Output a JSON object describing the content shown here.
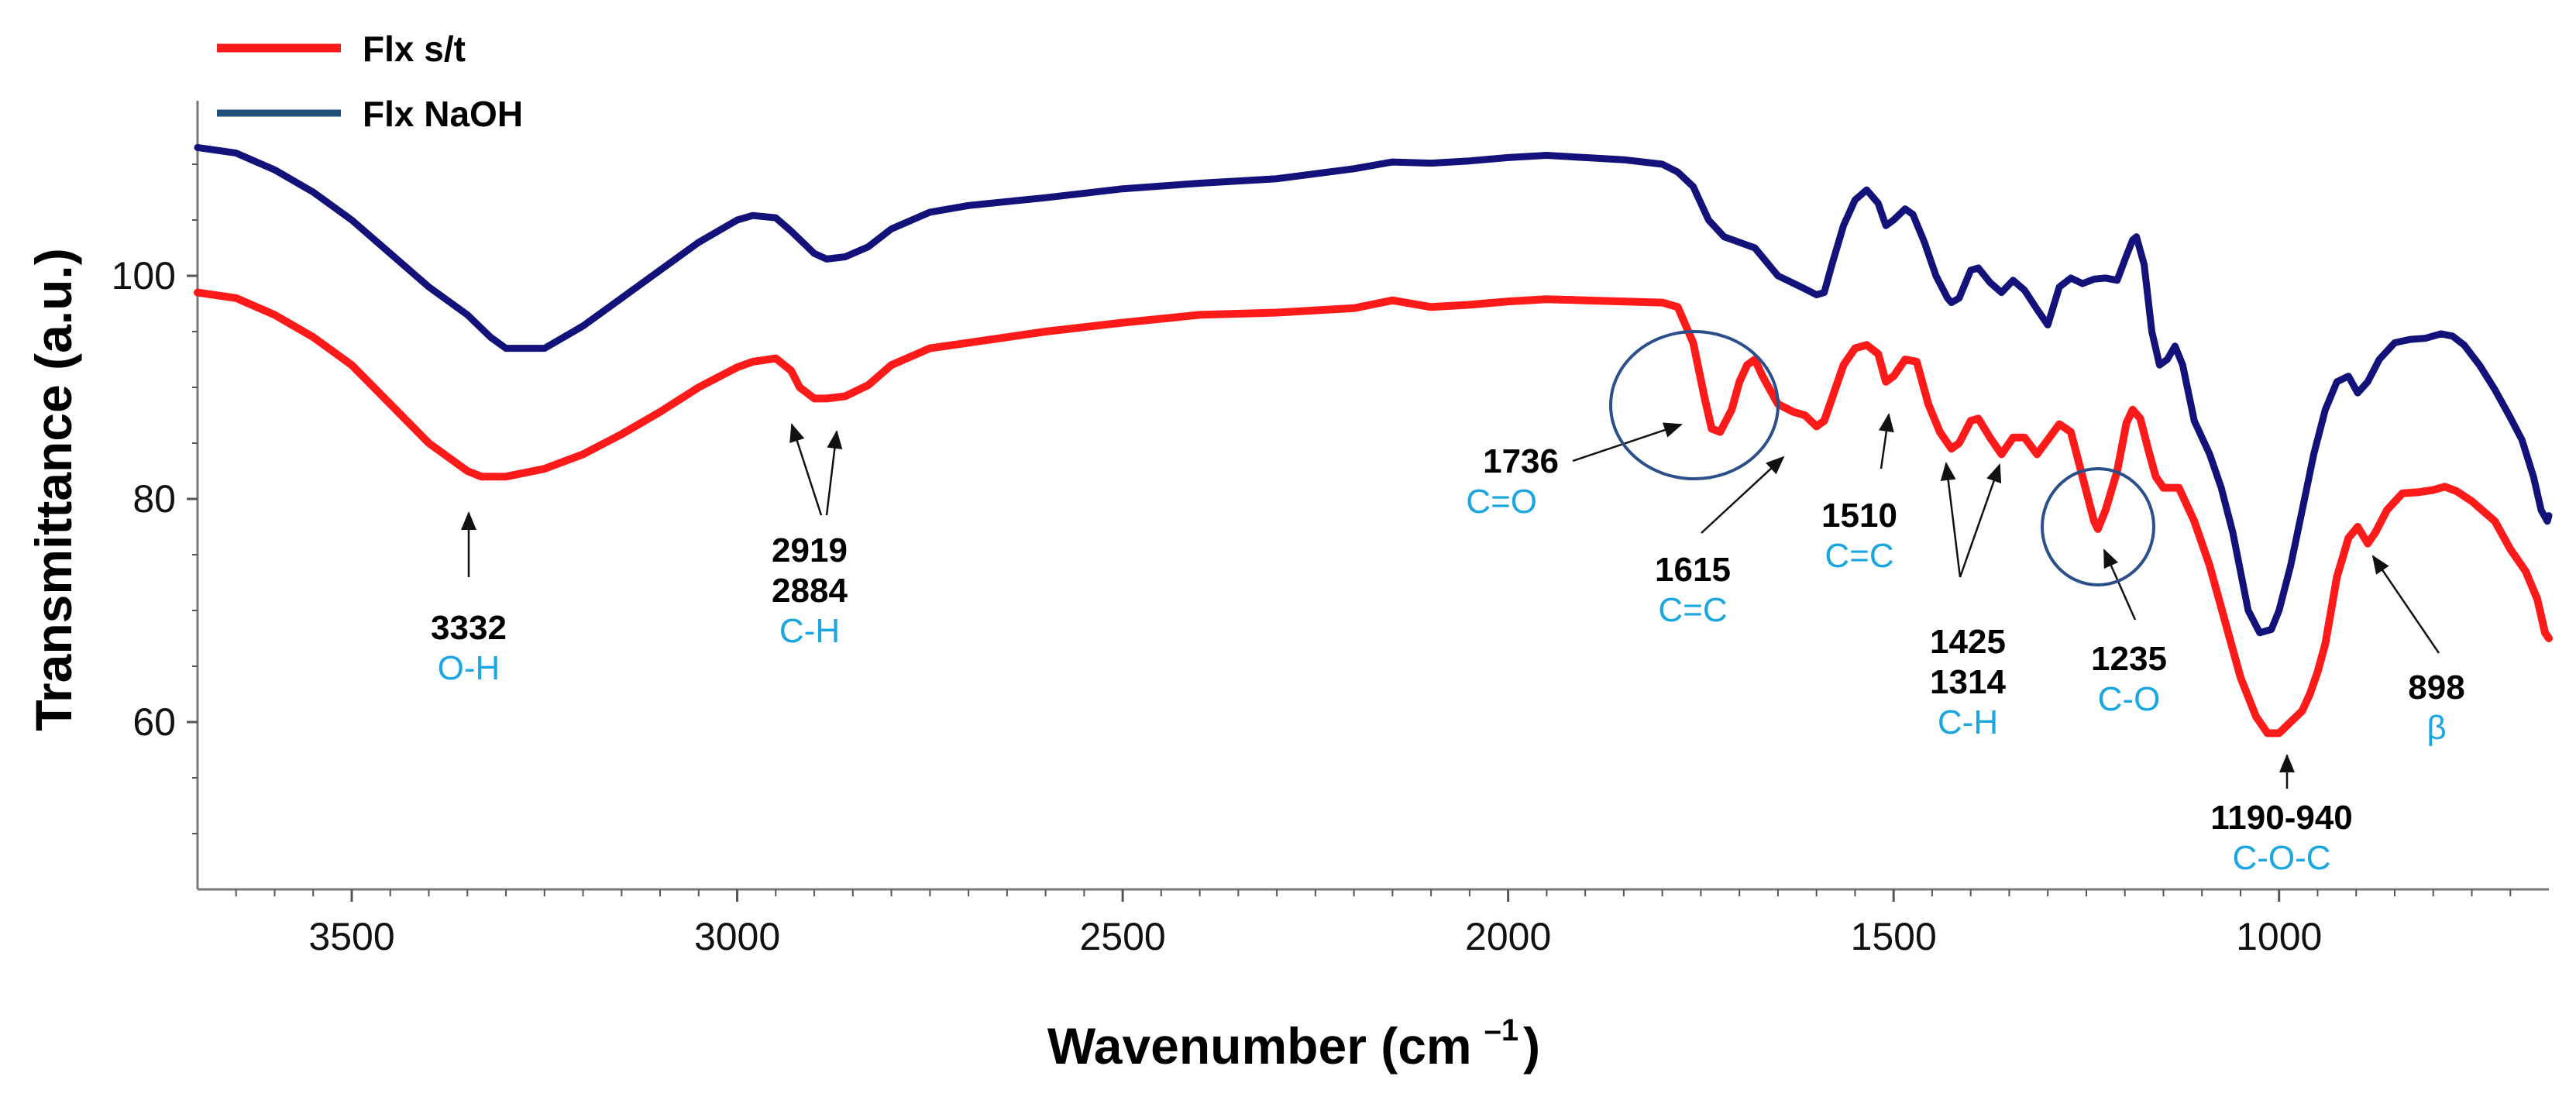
{
  "chart_data": {
    "type": "line",
    "xlabel": "Wavenumber (cm",
    "xlabel_sup": "–1",
    "xlabel_close": ")",
    "ylabel": "Transmittance (a.u.)",
    "xlim": [
      3700,
      650
    ],
    "ylim": [
      45,
      115
    ],
    "x_reversed": true,
    "x_ticks": [
      3500,
      3000,
      2500,
      2000,
      1500,
      1000
    ],
    "y_ticks": [
      60,
      80,
      100
    ],
    "legend": {
      "placement": "top-left"
    },
    "colors": {
      "Flx s/t": "#ff1a1a",
      "Flx NaOH": "#12127a",
      "legend_naoh": "#1f4e79",
      "annotation": "#1aa6e0",
      "circle": "#2a4f8a"
    },
    "series": [
      {
        "name": "Flx s/t",
        "points": [
          [
            3700,
            98.5
          ],
          [
            3650,
            98
          ],
          [
            3600,
            96.5
          ],
          [
            3550,
            94.5
          ],
          [
            3500,
            92
          ],
          [
            3450,
            88.5
          ],
          [
            3400,
            85
          ],
          [
            3350,
            82.5
          ],
          [
            3332,
            82
          ],
          [
            3300,
            82
          ],
          [
            3250,
            82.7
          ],
          [
            3200,
            84
          ],
          [
            3150,
            85.8
          ],
          [
            3100,
            87.8
          ],
          [
            3050,
            90
          ],
          [
            3000,
            91.8
          ],
          [
            2980,
            92.3
          ],
          [
            2950,
            92.6
          ],
          [
            2930,
            91.5
          ],
          [
            2919,
            90
          ],
          [
            2900,
            89
          ],
          [
            2884,
            89
          ],
          [
            2860,
            89.2
          ],
          [
            2830,
            90.2
          ],
          [
            2800,
            92
          ],
          [
            2750,
            93.5
          ],
          [
            2700,
            94
          ],
          [
            2600,
            95
          ],
          [
            2500,
            95.8
          ],
          [
            2400,
            96.5
          ],
          [
            2300,
            96.7
          ],
          [
            2200,
            97.1
          ],
          [
            2150,
            97.8
          ],
          [
            2100,
            97.2
          ],
          [
            2050,
            97.4
          ],
          [
            2000,
            97.7
          ],
          [
            1950,
            97.9
          ],
          [
            1900,
            97.8
          ],
          [
            1850,
            97.7
          ],
          [
            1800,
            97.6
          ],
          [
            1780,
            97.2
          ],
          [
            1760,
            94
          ],
          [
            1745,
            89
          ],
          [
            1736,
            86.3
          ],
          [
            1725,
            86
          ],
          [
            1710,
            88
          ],
          [
            1700,
            90.5
          ],
          [
            1690,
            92
          ],
          [
            1680,
            92.5
          ],
          [
            1670,
            91
          ],
          [
            1650,
            88.5
          ],
          [
            1630,
            87.8
          ],
          [
            1615,
            87.5
          ],
          [
            1600,
            86.5
          ],
          [
            1590,
            87
          ],
          [
            1580,
            89
          ],
          [
            1565,
            92
          ],
          [
            1550,
            93.5
          ],
          [
            1535,
            93.8
          ],
          [
            1520,
            93
          ],
          [
            1510,
            90.5
          ],
          [
            1500,
            91
          ],
          [
            1485,
            92.5
          ],
          [
            1470,
            92.3
          ],
          [
            1455,
            88.5
          ],
          [
            1440,
            86
          ],
          [
            1425,
            84.5
          ],
          [
            1415,
            85
          ],
          [
            1400,
            87
          ],
          [
            1390,
            87.2
          ],
          [
            1375,
            85.5
          ],
          [
            1360,
            84
          ],
          [
            1345,
            85.5
          ],
          [
            1330,
            85.5
          ],
          [
            1314,
            84
          ],
          [
            1300,
            85.3
          ],
          [
            1285,
            86.7
          ],
          [
            1270,
            86
          ],
          [
            1255,
            82
          ],
          [
            1240,
            78
          ],
          [
            1235,
            77.3
          ],
          [
            1225,
            79
          ],
          [
            1210,
            82.5
          ],
          [
            1198,
            86.8
          ],
          [
            1190,
            88
          ],
          [
            1180,
            87.2
          ],
          [
            1170,
            84.5
          ],
          [
            1160,
            82
          ],
          [
            1150,
            81
          ],
          [
            1130,
            81
          ],
          [
            1110,
            78
          ],
          [
            1090,
            74
          ],
          [
            1070,
            69
          ],
          [
            1050,
            64
          ],
          [
            1030,
            60.5
          ],
          [
            1015,
            59
          ],
          [
            1000,
            59
          ],
          [
            985,
            60
          ],
          [
            970,
            61
          ],
          [
            960,
            62.5
          ],
          [
            950,
            64.5
          ],
          [
            940,
            67
          ],
          [
            925,
            73
          ],
          [
            910,
            76.5
          ],
          [
            898,
            77.5
          ],
          [
            885,
            76
          ],
          [
            875,
            77
          ],
          [
            860,
            79
          ],
          [
            840,
            80.5
          ],
          [
            820,
            80.6
          ],
          [
            800,
            80.8
          ],
          [
            785,
            81.1
          ],
          [
            770,
            80.7
          ],
          [
            750,
            79.8
          ],
          [
            720,
            78
          ],
          [
            700,
            75.5
          ],
          [
            680,
            73.5
          ],
          [
            665,
            71
          ],
          [
            655,
            68
          ],
          [
            650,
            67.5
          ]
        ]
      },
      {
        "name": "Flx NaOH",
        "points": [
          [
            3700,
            111.5
          ],
          [
            3650,
            111
          ],
          [
            3600,
            109.5
          ],
          [
            3550,
            107.5
          ],
          [
            3500,
            105
          ],
          [
            3450,
            102
          ],
          [
            3400,
            99
          ],
          [
            3350,
            96.5
          ],
          [
            3320,
            94.5
          ],
          [
            3300,
            93.5
          ],
          [
            3250,
            93.5
          ],
          [
            3200,
            95.5
          ],
          [
            3150,
            98
          ],
          [
            3100,
            100.5
          ],
          [
            3050,
            103
          ],
          [
            3000,
            105
          ],
          [
            2980,
            105.4
          ],
          [
            2950,
            105.2
          ],
          [
            2930,
            104
          ],
          [
            2900,
            102
          ],
          [
            2884,
            101.5
          ],
          [
            2860,
            101.7
          ],
          [
            2830,
            102.6
          ],
          [
            2800,
            104.2
          ],
          [
            2750,
            105.7
          ],
          [
            2700,
            106.3
          ],
          [
            2600,
            107
          ],
          [
            2500,
            107.8
          ],
          [
            2400,
            108.3
          ],
          [
            2300,
            108.7
          ],
          [
            2200,
            109.6
          ],
          [
            2150,
            110.2
          ],
          [
            2100,
            110.1
          ],
          [
            2050,
            110.3
          ],
          [
            2000,
            110.6
          ],
          [
            1950,
            110.8
          ],
          [
            1900,
            110.6
          ],
          [
            1850,
            110.4
          ],
          [
            1800,
            110
          ],
          [
            1780,
            109.3
          ],
          [
            1760,
            108
          ],
          [
            1740,
            105
          ],
          [
            1720,
            103.5
          ],
          [
            1700,
            103
          ],
          [
            1680,
            102.5
          ],
          [
            1650,
            100
          ],
          [
            1620,
            99
          ],
          [
            1600,
            98.3
          ],
          [
            1590,
            98.5
          ],
          [
            1580,
            101
          ],
          [
            1565,
            104.5
          ],
          [
            1550,
            106.8
          ],
          [
            1535,
            107.7
          ],
          [
            1520,
            106.5
          ],
          [
            1510,
            104.5
          ],
          [
            1500,
            105
          ],
          [
            1485,
            106
          ],
          [
            1475,
            105.5
          ],
          [
            1460,
            103
          ],
          [
            1445,
            100
          ],
          [
            1430,
            98
          ],
          [
            1425,
            97.6
          ],
          [
            1415,
            98
          ],
          [
            1400,
            100.5
          ],
          [
            1390,
            100.7
          ],
          [
            1375,
            99.4
          ],
          [
            1360,
            98.5
          ],
          [
            1345,
            99.6
          ],
          [
            1330,
            98.7
          ],
          [
            1314,
            97
          ],
          [
            1300,
            95.6
          ],
          [
            1285,
            99
          ],
          [
            1270,
            99.8
          ],
          [
            1255,
            99.3
          ],
          [
            1240,
            99.7
          ],
          [
            1225,
            99.8
          ],
          [
            1210,
            99.6
          ],
          [
            1198,
            101.8
          ],
          [
            1190,
            103.2
          ],
          [
            1185,
            103.5
          ],
          [
            1175,
            101
          ],
          [
            1165,
            95
          ],
          [
            1155,
            92
          ],
          [
            1145,
            92.5
          ],
          [
            1135,
            93.7
          ],
          [
            1125,
            92
          ],
          [
            1110,
            87
          ],
          [
            1090,
            84
          ],
          [
            1075,
            81
          ],
          [
            1060,
            77
          ],
          [
            1040,
            70
          ],
          [
            1025,
            68
          ],
          [
            1010,
            68.3
          ],
          [
            1000,
            70
          ],
          [
            985,
            74
          ],
          [
            970,
            79
          ],
          [
            955,
            84
          ],
          [
            940,
            88
          ],
          [
            925,
            90.5
          ],
          [
            910,
            91
          ],
          [
            898,
            89.5
          ],
          [
            885,
            90.5
          ],
          [
            870,
            92.5
          ],
          [
            850,
            94
          ],
          [
            830,
            94.3
          ],
          [
            810,
            94.4
          ],
          [
            790,
            94.8
          ],
          [
            775,
            94.6
          ],
          [
            760,
            93.8
          ],
          [
            740,
            92
          ],
          [
            720,
            89.8
          ],
          [
            700,
            87.3
          ],
          [
            685,
            85.3
          ],
          [
            670,
            82
          ],
          [
            660,
            79
          ],
          [
            652,
            78
          ],
          [
            650,
            78.5
          ]
        ]
      }
    ],
    "annotations": [
      {
        "id": "3332",
        "lines": [
          "3332"
        ],
        "group": "O-H"
      },
      {
        "id": "2919",
        "lines": [
          "2919",
          "2884"
        ],
        "group": "C-H"
      },
      {
        "id": "1736",
        "lines": [
          "1736"
        ],
        "group": "C=O"
      },
      {
        "id": "1615",
        "lines": [
          "1615"
        ],
        "group": "C=C"
      },
      {
        "id": "1510",
        "lines": [
          "1510"
        ],
        "group": "C=C"
      },
      {
        "id": "1425",
        "lines": [
          "1425",
          "1314"
        ],
        "group": "C-H"
      },
      {
        "id": "1235",
        "lines": [
          "1235"
        ],
        "group": "C-O"
      },
      {
        "id": "1190",
        "lines": [
          "1190-940"
        ],
        "group": "C-O-C"
      },
      {
        "id": "898",
        "lines": [
          "898"
        ],
        "group": "β"
      }
    ]
  }
}
